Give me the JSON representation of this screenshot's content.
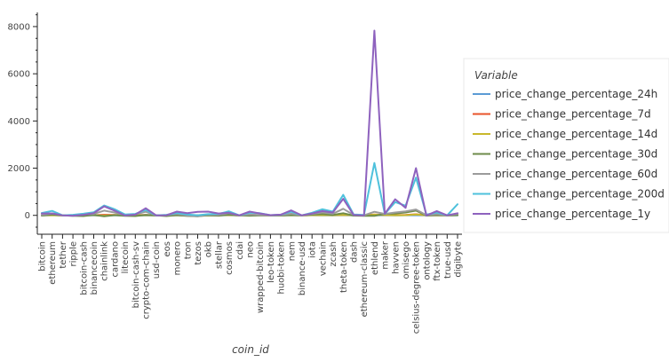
{
  "chart_data": {
    "type": "line",
    "title": "",
    "xlabel": "coin_id",
    "ylabel": "",
    "ylim": [
      -800,
      8600
    ],
    "yticks": [
      0,
      2000,
      4000,
      6000,
      8000
    ],
    "grid": false,
    "legend": {
      "title": "Variable",
      "placement": "right"
    },
    "categories": [
      "bitcoin",
      "ethereum",
      "tether",
      "ripple",
      "bitcoin-cash",
      "binancecoin",
      "chainlink",
      "cardano",
      "litecoin",
      "bitcoin-cash-sv",
      "crypto-com-chain",
      "usd-coin",
      "eos",
      "monero",
      "tron",
      "tezos",
      "okb",
      "stellar",
      "cosmos",
      "cdai",
      "neo",
      "wrapped-bitcoin",
      "leo-token",
      "huobi-token",
      "nem",
      "binance-usd",
      "iota",
      "vechain",
      "zcash",
      "theta-token",
      "dash",
      "ethereum-classic",
      "ethlend",
      "maker",
      "havven",
      "omisego",
      "celsius-degree-token",
      "ontology",
      "ftx-token",
      "true-usd",
      "digibyte"
    ],
    "series": [
      {
        "name": "price_change_percentage_24h",
        "color": "#5b9bd5",
        "values": [
          1,
          3,
          0,
          -1,
          2,
          2,
          4,
          5,
          2,
          3,
          2,
          0,
          1,
          3,
          1,
          1,
          2,
          1,
          4,
          0,
          2,
          1,
          0,
          1,
          2,
          0,
          3,
          2,
          2,
          3,
          2,
          1,
          5,
          4,
          2,
          3,
          6,
          1,
          2,
          0,
          2
        ]
      },
      {
        "name": "price_change_percentage_7d",
        "color": "#e8532a",
        "values": [
          8,
          12,
          0,
          3,
          15,
          10,
          22,
          18,
          9,
          14,
          17,
          0,
          6,
          12,
          5,
          8,
          11,
          4,
          20,
          0,
          9,
          8,
          2,
          6,
          14,
          0,
          13,
          10,
          11,
          25,
          7,
          5,
          40,
          18,
          12,
          16,
          45,
          6,
          9,
          0,
          14
        ]
      },
      {
        "name": "price_change_percentage_14d",
        "color": "#c9b82b",
        "values": [
          6,
          10,
          0,
          -8,
          12,
          8,
          -10,
          14,
          4,
          6,
          10,
          0,
          -6,
          9,
          -2,
          -12,
          5,
          -4,
          15,
          0,
          4,
          6,
          1,
          -3,
          8,
          0,
          10,
          14,
          5,
          20,
          3,
          -5,
          30,
          12,
          6,
          10,
          40,
          3,
          6,
          0,
          8
        ]
      },
      {
        "name": "price_change_percentage_30d",
        "color": "#6e8b4a",
        "values": [
          -10,
          40,
          0,
          -20,
          -30,
          20,
          -40,
          10,
          -20,
          -30,
          20,
          0,
          -30,
          10,
          -25,
          -40,
          5,
          -15,
          30,
          0,
          -15,
          5,
          0,
          -10,
          20,
          0,
          30,
          60,
          20,
          90,
          -10,
          -20,
          -20,
          60,
          80,
          120,
          200,
          -10,
          20,
          0,
          10
        ]
      },
      {
        "name": "price_change_percentage_60d",
        "color": "#9b9b9b",
        "values": [
          20,
          80,
          0,
          -20,
          40,
          60,
          200,
          120,
          10,
          40,
          150,
          0,
          10,
          60,
          -10,
          -40,
          30,
          20,
          90,
          0,
          40,
          20,
          0,
          10,
          70,
          0,
          60,
          120,
          70,
          280,
          20,
          0,
          150,
          60,
          120,
          170,
          250,
          10,
          50,
          0,
          60
        ]
      },
      {
        "name": "price_change_percentage_200d",
        "color": "#4ec1dc",
        "values": [
          100,
          190,
          0,
          25,
          70,
          130,
          420,
          260,
          40,
          60,
          230,
          0,
          25,
          100,
          40,
          5,
          50,
          60,
          170,
          0,
          110,
          90,
          10,
          30,
          150,
          0,
          110,
          260,
          160,
          870,
          40,
          20,
          2220,
          60,
          560,
          410,
          1600,
          30,
          120,
          0,
          470
        ]
      },
      {
        "name": "price_change_percentage_1y",
        "color": "#8e62be",
        "values": [
          80,
          85,
          0,
          -15,
          25,
          95,
          380,
          200,
          -5,
          30,
          300,
          0,
          5,
          160,
          90,
          150,
          160,
          80,
          110,
          0,
          160,
          80,
          10,
          30,
          210,
          0,
          80,
          180,
          120,
          700,
          20,
          -5,
          7830,
          70,
          680,
          320,
          2000,
          -5,
          180,
          0,
          90
        ]
      }
    ]
  }
}
